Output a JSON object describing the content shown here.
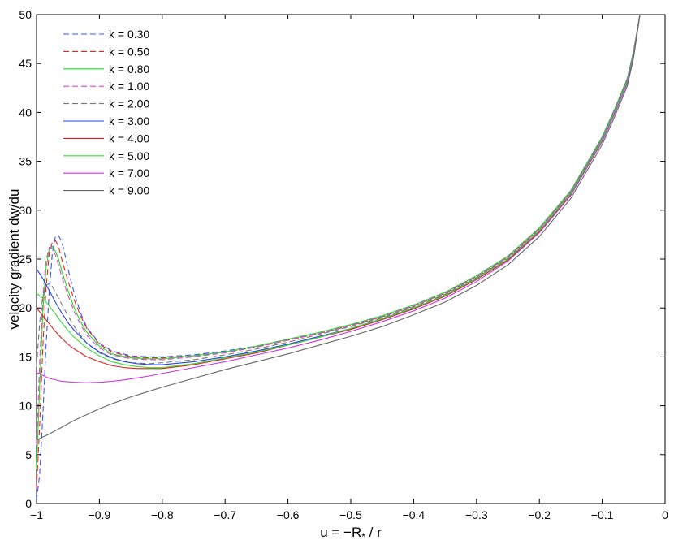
{
  "chart_data": {
    "type": "line",
    "title": "",
    "xlabel": "u = −R",
    "xlabel_sub": "*",
    "xlabel_tail": " / r",
    "ylabel": "velocity gradient dw/du",
    "xlim": [
      -1,
      0
    ],
    "ylim": [
      0,
      50
    ],
    "xticks": [
      -1,
      -0.9,
      -0.8,
      -0.7,
      -0.6,
      -0.5,
      -0.4,
      -0.3,
      -0.2,
      -0.1,
      0
    ],
    "xtick_labels": [
      "−1",
      "−0.9",
      "−0.8",
      "−0.7",
      "−0.6",
      "−0.5",
      "−0.4",
      "−0.3",
      "−0.2",
      "−0.1",
      "0"
    ],
    "yticks": [
      0,
      5,
      10,
      15,
      20,
      25,
      30,
      35,
      40,
      45,
      50
    ],
    "ytick_labels": [
      "0",
      "5",
      "10",
      "15",
      "20",
      "25",
      "30",
      "35",
      "40",
      "45",
      "50"
    ],
    "grid": false,
    "legend_position": "top-left",
    "series": [
      {
        "name": "k = 0.30",
        "color": "#3355ff",
        "dash": true,
        "x": [
          -1,
          -0.995,
          -0.99,
          -0.985,
          -0.98,
          -0.975,
          -0.97,
          -0.965,
          -0.96,
          -0.955,
          -0.95,
          -0.94,
          -0.93,
          -0.92,
          -0.9,
          -0.88,
          -0.85,
          -0.82,
          -0.8,
          -0.75,
          -0.7,
          -0.65,
          -0.6,
          -0.55,
          -0.5,
          -0.45,
          -0.4,
          -0.35,
          -0.3,
          -0.25,
          -0.2,
          -0.15,
          -0.1,
          -0.08,
          -0.06,
          -0.05,
          -0.04
        ],
        "y": [
          0.3,
          3,
          9,
          16,
          21.5,
          25.5,
          27.3,
          27.4,
          26.8,
          25.5,
          24,
          21.5,
          19.5,
          18,
          16.4,
          15.6,
          15.1,
          15.0,
          15.0,
          15.2,
          15.6,
          16.1,
          16.8,
          17.5,
          18.3,
          19.2,
          20.3,
          21.6,
          23.3,
          25.3,
          28.2,
          32.0,
          37.5,
          40.4,
          43.5,
          46.3,
          50
        ]
      },
      {
        "name": "k = 0.50",
        "color": "#ee2222",
        "dash": true,
        "x": [
          -1,
          -0.995,
          -0.99,
          -0.985,
          -0.98,
          -0.975,
          -0.97,
          -0.965,
          -0.96,
          -0.95,
          -0.94,
          -0.93,
          -0.92,
          -0.9,
          -0.88,
          -0.85,
          -0.82,
          -0.8,
          -0.75,
          -0.7,
          -0.65,
          -0.6,
          -0.55,
          -0.5,
          -0.45,
          -0.4,
          -0.35,
          -0.3,
          -0.25,
          -0.2,
          -0.15,
          -0.1,
          -0.08,
          -0.06,
          -0.05,
          -0.04
        ],
        "y": [
          1.5,
          8,
          16,
          22,
          25.5,
          26.7,
          26.9,
          26.3,
          25,
          22.8,
          20.8,
          19.2,
          17.9,
          16.3,
          15.5,
          15.0,
          14.9,
          14.9,
          15.1,
          15.5,
          16.0,
          16.7,
          17.4,
          18.2,
          19.1,
          20.2,
          21.5,
          23.2,
          25.2,
          28.1,
          31.9,
          37.4,
          40.3,
          43.4,
          46.2,
          50
        ]
      },
      {
        "name": "k = 0.80",
        "color": "#22dd22",
        "dash": false,
        "x": [
          -1,
          -0.995,
          -0.99,
          -0.985,
          -0.98,
          -0.975,
          -0.97,
          -0.965,
          -0.96,
          -0.95,
          -0.94,
          -0.93,
          -0.92,
          -0.9,
          -0.88,
          -0.85,
          -0.82,
          -0.8,
          -0.75,
          -0.7,
          -0.65,
          -0.6,
          -0.55,
          -0.5,
          -0.45,
          -0.4,
          -0.35,
          -0.3,
          -0.25,
          -0.2,
          -0.15,
          -0.1,
          -0.08,
          -0.06,
          -0.05,
          -0.04
        ],
        "y": [
          3.5,
          12,
          19.5,
          24,
          26,
          26.3,
          25.8,
          25,
          23.8,
          21.8,
          20.0,
          18.6,
          17.5,
          16.1,
          15.3,
          14.9,
          14.8,
          14.8,
          15.1,
          15.5,
          16.1,
          16.8,
          17.5,
          18.3,
          19.2,
          20.3,
          21.6,
          23.3,
          25.3,
          28.2,
          32.0,
          37.5,
          40.4,
          43.5,
          46.3,
          50
        ]
      },
      {
        "name": "k = 1.00",
        "color": "#dd44dd",
        "dash": true,
        "x": [
          -1,
          -0.995,
          -0.99,
          -0.985,
          -0.98,
          -0.975,
          -0.97,
          -0.965,
          -0.96,
          -0.95,
          -0.94,
          -0.93,
          -0.92,
          -0.9,
          -0.88,
          -0.85,
          -0.82,
          -0.8,
          -0.75,
          -0.7,
          -0.65,
          -0.6,
          -0.55,
          -0.5,
          -0.45,
          -0.4,
          -0.35,
          -0.3,
          -0.25,
          -0.2,
          -0.15,
          -0.1,
          -0.08,
          -0.06,
          -0.05,
          -0.04
        ],
        "y": [
          6,
          14.5,
          21,
          24.8,
          26.2,
          26.1,
          25.4,
          24.4,
          23.2,
          21.3,
          19.6,
          18.3,
          17.2,
          15.9,
          15.2,
          14.8,
          14.7,
          14.7,
          15.0,
          15.4,
          16.0,
          16.7,
          17.4,
          18.2,
          19.1,
          20.2,
          21.5,
          23.2,
          25.2,
          28.1,
          31.9,
          37.4,
          40.3,
          43.4,
          46.2,
          50
        ]
      },
      {
        "name": "k = 2.00",
        "color": "#777777",
        "dash": true,
        "x": [
          -1,
          -0.995,
          -0.99,
          -0.985,
          -0.98,
          -0.975,
          -0.97,
          -0.96,
          -0.95,
          -0.94,
          -0.93,
          -0.92,
          -0.9,
          -0.88,
          -0.85,
          -0.82,
          -0.8,
          -0.75,
          -0.7,
          -0.65,
          -0.6,
          -0.55,
          -0.5,
          -0.45,
          -0.4,
          -0.35,
          -0.3,
          -0.25,
          -0.2,
          -0.15,
          -0.1,
          -0.08,
          -0.06,
          -0.05,
          -0.04
        ],
        "y": [
          14,
          18.5,
          21.2,
          22.3,
          22.5,
          22.2,
          21.6,
          20.4,
          19.2,
          18.1,
          17.2,
          16.4,
          15.4,
          14.8,
          14.4,
          14.3,
          14.4,
          14.7,
          15.2,
          15.8,
          16.5,
          17.3,
          18.1,
          19.0,
          20.1,
          21.4,
          23.1,
          25.1,
          28.0,
          31.8,
          37.3,
          40.2,
          43.3,
          46.1,
          50
        ]
      },
      {
        "name": "k = 3.00",
        "color": "#2244ee",
        "dash": false,
        "x": [
          -1,
          -0.99,
          -0.98,
          -0.97,
          -0.96,
          -0.95,
          -0.94,
          -0.92,
          -0.9,
          -0.88,
          -0.86,
          -0.84,
          -0.82,
          -0.8,
          -0.75,
          -0.7,
          -0.65,
          -0.6,
          -0.55,
          -0.5,
          -0.45,
          -0.4,
          -0.35,
          -0.3,
          -0.25,
          -0.2,
          -0.15,
          -0.1,
          -0.08,
          -0.06,
          -0.05,
          -0.04
        ],
        "y": [
          24,
          23,
          21.8,
          20.6,
          19.5,
          18.5,
          17.7,
          16.4,
          15.5,
          14.9,
          14.5,
          14.3,
          14.2,
          14.2,
          14.5,
          15.0,
          15.6,
          16.3,
          17.1,
          17.9,
          18.9,
          20.0,
          21.3,
          23.0,
          25.0,
          27.9,
          31.7,
          37.2,
          40.1,
          43.2,
          46.0,
          50
        ]
      },
      {
        "name": "k = 4.00",
        "color": "#dd2222",
        "dash": false,
        "x": [
          -1,
          -0.99,
          -0.98,
          -0.97,
          -0.96,
          -0.95,
          -0.94,
          -0.92,
          -0.9,
          -0.88,
          -0.86,
          -0.84,
          -0.82,
          -0.8,
          -0.75,
          -0.7,
          -0.65,
          -0.6,
          -0.55,
          -0.5,
          -0.45,
          -0.4,
          -0.35,
          -0.3,
          -0.25,
          -0.2,
          -0.15,
          -0.1,
          -0.08,
          -0.06,
          -0.05,
          -0.04
        ],
        "y": [
          20,
          19.2,
          18.4,
          17.6,
          16.9,
          16.3,
          15.8,
          15.0,
          14.5,
          14.1,
          13.9,
          13.8,
          13.8,
          13.8,
          14.2,
          14.8,
          15.4,
          16.2,
          17.0,
          17.8,
          18.8,
          19.9,
          21.2,
          22.9,
          24.9,
          27.8,
          31.6,
          37.1,
          40.0,
          43.1,
          45.9,
          50
        ]
      },
      {
        "name": "k = 5.00",
        "color": "#33dd33",
        "dash": false,
        "x": [
          -1,
          -0.99,
          -0.98,
          -0.97,
          -0.96,
          -0.95,
          -0.94,
          -0.92,
          -0.9,
          -0.88,
          -0.86,
          -0.84,
          -0.82,
          -0.8,
          -0.75,
          -0.7,
          -0.65,
          -0.6,
          -0.55,
          -0.5,
          -0.45,
          -0.4,
          -0.35,
          -0.3,
          -0.25,
          -0.2,
          -0.15,
          -0.1,
          -0.08,
          -0.06,
          -0.05,
          -0.04
        ],
        "y": [
          21.5,
          21.0,
          20.2,
          19.4,
          18.5,
          17.7,
          17.0,
          15.9,
          15.1,
          14.5,
          14.2,
          14.0,
          13.9,
          13.9,
          14.3,
          14.9,
          15.5,
          16.2,
          17.0,
          17.9,
          18.9,
          20.0,
          21.3,
          23.0,
          25.0,
          27.9,
          31.7,
          37.2,
          40.1,
          43.2,
          46.0,
          50
        ]
      },
      {
        "name": "k = 7.00",
        "color": "#cc33dd",
        "dash": false,
        "x": [
          -1,
          -0.98,
          -0.96,
          -0.94,
          -0.92,
          -0.9,
          -0.88,
          -0.86,
          -0.84,
          -0.82,
          -0.8,
          -0.75,
          -0.7,
          -0.65,
          -0.6,
          -0.55,
          -0.5,
          -0.45,
          -0.4,
          -0.35,
          -0.3,
          -0.25,
          -0.2,
          -0.15,
          -0.1,
          -0.08,
          -0.06,
          -0.05,
          -0.04
        ],
        "y": [
          13.4,
          12.8,
          12.5,
          12.4,
          12.35,
          12.4,
          12.5,
          12.65,
          12.85,
          13.05,
          13.3,
          13.9,
          14.5,
          15.2,
          15.9,
          16.7,
          17.6,
          18.6,
          19.7,
          21.0,
          22.7,
          24.8,
          27.7,
          31.5,
          37.0,
          39.9,
          43.0,
          45.8,
          50
        ]
      },
      {
        "name": "k = 9.00",
        "color": "#666666",
        "dash": false,
        "x": [
          -1,
          -0.98,
          -0.96,
          -0.94,
          -0.92,
          -0.9,
          -0.88,
          -0.85,
          -0.82,
          -0.8,
          -0.75,
          -0.7,
          -0.65,
          -0.6,
          -0.55,
          -0.5,
          -0.45,
          -0.4,
          -0.35,
          -0.3,
          -0.25,
          -0.2,
          -0.15,
          -0.1,
          -0.08,
          -0.06,
          -0.05,
          -0.04
        ],
        "y": [
          6.5,
          7.1,
          7.8,
          8.5,
          9.1,
          9.7,
          10.2,
          10.9,
          11.5,
          11.9,
          12.8,
          13.7,
          14.5,
          15.3,
          16.2,
          17.1,
          18.1,
          19.3,
          20.6,
          22.3,
          24.4,
          27.3,
          31.2,
          36.7,
          39.6,
          42.7,
          45.6,
          50
        ]
      }
    ]
  }
}
